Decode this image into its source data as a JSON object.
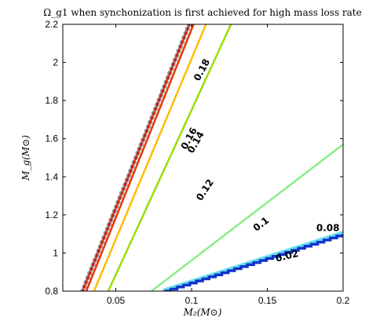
{
  "chart_data": {
    "type": "line",
    "title": "Ω_g1 when synchonization is first achieved for high mass loss rate",
    "xlabel": "M₂(M⊙)",
    "ylabel": "M_g(M⊙)",
    "xlim": [
      0.015,
      0.2
    ],
    "ylim": [
      0.8,
      2.2
    ],
    "x_ticks": [
      0.05,
      0.1,
      0.15,
      0.2
    ],
    "x_tick_labels": [
      "0.05",
      "0.1",
      "0.15",
      "0.2"
    ],
    "y_ticks": [
      0.8,
      1.0,
      1.2,
      1.4,
      1.6,
      1.8,
      2.0,
      2.2
    ],
    "y_tick_labels": [
      "0.8",
      "1",
      "1.2",
      "1.4",
      "1.6",
      "1.8",
      "2",
      "2.2"
    ],
    "grid": false,
    "legend": "none",
    "series": [
      {
        "label": "0.18",
        "color": "#cc1100",
        "style": "circles",
        "x": [
          0.028,
          0.0985
        ],
        "y": [
          0.8,
          2.2
        ]
      },
      {
        "label": "0.16",
        "color": "#ee3300",
        "x": [
          0.0305,
          0.1013
        ],
        "y": [
          0.8,
          2.2
        ]
      },
      {
        "label": "0.14",
        "color": "#ffbb00",
        "x": [
          0.0356,
          0.1095
        ],
        "y": [
          0.8,
          2.2
        ]
      },
      {
        "label": "0.12",
        "color": "#99dd00",
        "x": [
          0.045,
          0.126
        ],
        "y": [
          0.8,
          2.2
        ]
      },
      {
        "label": "0.1",
        "color": "#88ee88",
        "x": [
          0.0735,
          0.2
        ],
        "y": [
          0.8,
          1.57
        ]
      },
      {
        "label": "0.08",
        "color": "#66ddee",
        "x": [
          0.081,
          0.2
        ],
        "y": [
          0.8,
          1.105
        ]
      },
      {
        "label": "0.02",
        "color": "#1133cc",
        "style": "step",
        "x": [
          0.082,
          0.2
        ],
        "y": [
          0.8,
          1.1
        ]
      }
    ],
    "annotations": [
      {
        "text": "0.18",
        "x": 0.107,
        "y": 1.96,
        "angle": -62
      },
      {
        "text": "0.16",
        "x": 0.0985,
        "y": 1.6,
        "angle": -62
      },
      {
        "text": "0.14",
        "x": 0.103,
        "y": 1.58,
        "angle": -60
      },
      {
        "text": "0.12",
        "x": 0.109,
        "y": 1.33,
        "angle": -57
      },
      {
        "text": "0.1",
        "x": 0.146,
        "y": 1.15,
        "angle": -37
      },
      {
        "text": "0.08",
        "x": 0.19,
        "y": 1.13,
        "angle": 0
      },
      {
        "text": "0.02",
        "x": 0.163,
        "y": 0.982,
        "angle": -14
      }
    ]
  }
}
